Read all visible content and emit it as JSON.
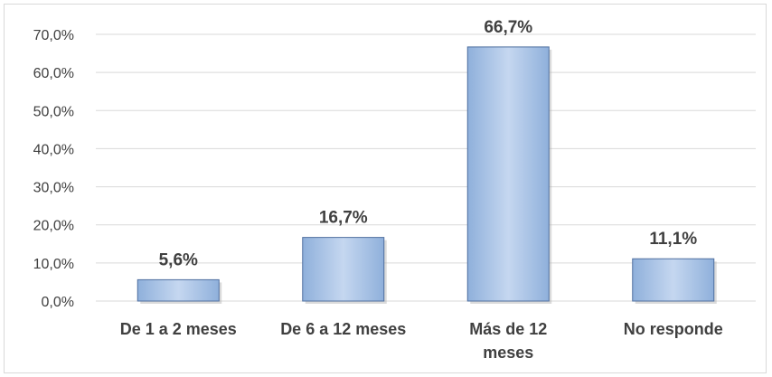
{
  "chart_data": {
    "type": "bar",
    "categories": [
      [
        "De 1 a 2 meses"
      ],
      [
        "De 6 a 12 meses"
      ],
      [
        "Más de 12",
        "meses"
      ],
      [
        "No responde"
      ]
    ],
    "values": [
      5.6,
      16.7,
      66.7,
      11.1
    ],
    "data_labels": [
      "5,6%",
      "16,7%",
      "66,7%",
      "11,1%"
    ],
    "yticks": [
      "0,0%",
      "10,0%",
      "20,0%",
      "30,0%",
      "40,0%",
      "50,0%",
      "60,0%",
      "70,0%"
    ],
    "ylim": [
      0,
      70
    ],
    "grid": true,
    "colors": {
      "bar_fill_light": "#c5d7f0",
      "bar_fill_dark": "#8fb0db",
      "bar_stroke": "#4f6f9f",
      "grid": "#d9d9d9"
    }
  }
}
